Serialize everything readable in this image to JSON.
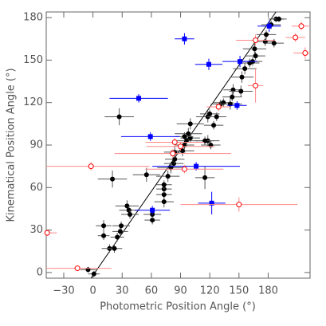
{
  "chart_data": {
    "type": "scatter",
    "xlabel": "Photometric Position Angle (°)",
    "ylabel": "Kinematical Position Angle (°)",
    "xlim": [
      -48,
      223
    ],
    "ylim": [
      -4,
      184
    ],
    "xticks": [
      {
        "value": -30,
        "label": "−30"
      },
      0,
      30,
      60,
      90,
      120,
      150,
      180
    ],
    "yticks": [
      0,
      30,
      60,
      90,
      120,
      150,
      180
    ],
    "line": {
      "x": [
        -2,
        188
      ],
      "y": [
        -4,
        184
      ],
      "color": "#000000"
    },
    "series": [
      {
        "marker": "circle",
        "color": "#000000",
        "error_color": "#555555",
        "x": [
          -5,
          1,
          11,
          11,
          20,
          17,
          22,
          25,
          28,
          29,
          35,
          37,
          38,
          27,
          55,
          61,
          61,
          73,
          73,
          73,
          73,
          77,
          80,
          83,
          84,
          84,
          92,
          94,
          96,
          98,
          100,
          100,
          94,
          115,
          118,
          120,
          118,
          115,
          131,
          134,
          141,
          143,
          144,
          152,
          153,
          156,
          161,
          164,
          166,
          177,
          178,
          183,
          188,
          191,
          186,
          167,
          127,
          124,
          121
        ],
        "y": [
          2,
          -1,
          33,
          26,
          66,
          17,
          17,
          25,
          29,
          33,
          47,
          44,
          41,
          110,
          69,
          37,
          41,
          50,
          55,
          59,
          62,
          68,
          74,
          77,
          80,
          85,
          86,
          90,
          93,
          98,
          95,
          105,
          96,
          67,
          110,
          112,
          93,
          93,
          119,
          120,
          119,
          124,
          129,
          128,
          138,
          144,
          148,
          149,
          158,
          163,
          168,
          175,
          179,
          179,
          162,
          153,
          110,
          104,
          90
        ],
        "xerr": [
          8,
          6,
          8,
          6,
          15,
          8,
          8,
          7,
          8,
          9,
          12,
          10,
          9,
          15,
          14,
          8,
          9,
          10,
          8,
          8,
          8,
          12,
          14,
          10,
          10,
          11,
          12,
          10,
          12,
          14,
          10,
          14,
          9,
          10,
          12,
          10,
          12,
          10,
          10,
          10,
          12,
          10,
          10,
          12,
          12,
          12,
          10,
          10,
          12,
          10,
          10,
          10,
          8,
          8,
          10,
          10,
          10,
          10,
          10
        ],
        "yerr": [
          2,
          2,
          4,
          3,
          6,
          3,
          3,
          3,
          3,
          3,
          4,
          3,
          3,
          6,
          5,
          3,
          3,
          4,
          3,
          3,
          3,
          4,
          4,
          3,
          3,
          4,
          4,
          3,
          4,
          4,
          3,
          4,
          3,
          8,
          4,
          3,
          4,
          3,
          3,
          3,
          4,
          3,
          4,
          4,
          4,
          4,
          3,
          3,
          4,
          3,
          3,
          3,
          2,
          2,
          3,
          3,
          3,
          3,
          3
        ]
      },
      {
        "marker": "square",
        "color": "#0000ff",
        "error_color": "#0000ff",
        "x": [
          94,
          119,
          151,
          181,
          47,
          59,
          148,
          106,
          61,
          122
        ],
        "y": [
          165,
          147,
          149,
          174,
          123,
          96,
          118,
          75,
          44,
          49
        ],
        "xerr": [
          10,
          14,
          18,
          12,
          30,
          30,
          10,
          45,
          18,
          14
        ],
        "yerr": [
          4,
          4,
          4,
          4,
          3,
          3,
          3,
          3,
          3,
          8
        ]
      },
      {
        "marker": "open-circle",
        "color": "#ff0000",
        "error_color": "#ff8888",
        "x": [
          -16,
          -47,
          -2,
          82,
          90,
          94,
          129,
          167,
          167,
          218,
          150,
          214,
          208,
          84
        ],
        "y": [
          3,
          28,
          75,
          84,
          89,
          73,
          117,
          132,
          164,
          155,
          48,
          174,
          166,
          92
        ],
        "xerr": [
          35,
          10,
          60,
          60,
          35,
          40,
          12,
          8,
          20,
          12,
          60,
          10,
          10,
          30
        ],
        "yerr": [
          2,
          2,
          3,
          3,
          3,
          3,
          3,
          12,
          4,
          4,
          5,
          3,
          3,
          3
        ]
      }
    ]
  }
}
